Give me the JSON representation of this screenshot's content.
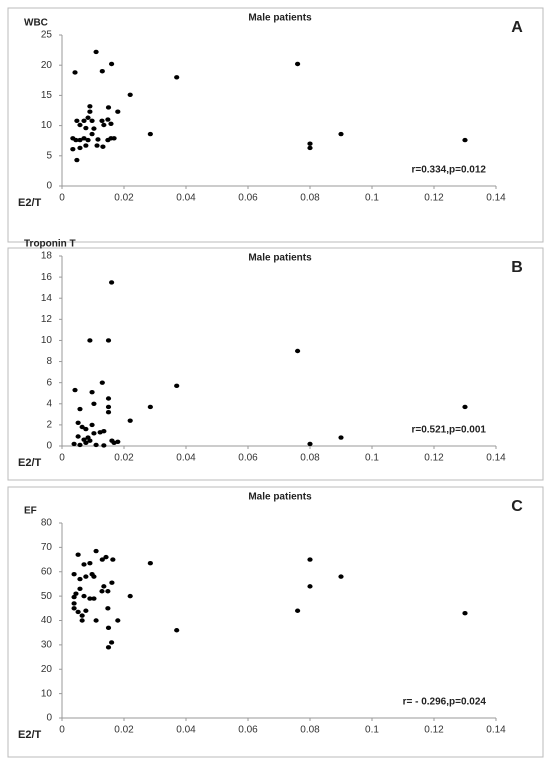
{
  "chart_data": [
    {
      "type": "scatter",
      "title": "Male patients",
      "y_label": "WBC",
      "x_label": "E2/T",
      "panel": "A",
      "annotation": "r=0.334,p=0.012",
      "color": "#000000",
      "x": [
        0.0042,
        0.011,
        0.013,
        0.016,
        0.022,
        0.037,
        0.076,
        0.08,
        0.08,
        0.09,
        0.13,
        0.0285,
        0.018,
        0.015,
        0.009,
        0.009,
        0.0048,
        0.0058,
        0.0071,
        0.0077,
        0.0084,
        0.0097,
        0.0103,
        0.0129,
        0.0135,
        0.0148,
        0.0158,
        0.0045,
        0.0058,
        0.0071,
        0.0084,
        0.0097,
        0.0116,
        0.0077,
        0.0058,
        0.0035,
        0.0048,
        0.0113,
        0.0132,
        0.0148,
        0.0158,
        0.0168,
        0.0035
      ],
      "y": [
        18.8,
        22.2,
        19,
        20.2,
        15.1,
        18,
        20.2,
        7,
        6.3,
        8.6,
        7.6,
        8.6,
        12.3,
        13,
        13.2,
        12.3,
        10.8,
        10.1,
        10.8,
        9.6,
        11.3,
        10.8,
        9.5,
        10.8,
        10.1,
        11,
        10.3,
        7.6,
        7.6,
        7.9,
        7.6,
        8.6,
        7.7,
        6.7,
        6.3,
        6.1,
        4.3,
        6.7,
        6.5,
        7.6,
        7.9,
        7.9,
        7.9
      ],
      "xlim": [
        0,
        0.14
      ],
      "xticks": [
        0,
        0.02,
        0.04,
        0.06,
        0.08,
        0.1,
        0.12,
        0.14
      ],
      "ylim": [
        0,
        25
      ],
      "yticks": [
        0,
        5,
        10,
        15,
        20,
        25
      ]
    },
    {
      "type": "scatter",
      "title": "Male patients",
      "y_label": "Troponin T",
      "x_label": "E2/T",
      "panel": "B",
      "annotation": "r=0.521,p=0.001",
      "color": "#000000",
      "x": [
        0.016,
        0.009,
        0.015,
        0.076,
        0.037,
        0.0042,
        0.0097,
        0.013,
        0.015,
        0.015,
        0.015,
        0.0285,
        0.13,
        0.0058,
        0.0103,
        0.022,
        0.09,
        0.08,
        0.0052,
        0.0065,
        0.0077,
        0.0097,
        0.0103,
        0.0123,
        0.0135,
        0.0084,
        0.0052,
        0.0071,
        0.0039,
        0.0058,
        0.0077,
        0.009,
        0.011,
        0.0135,
        0.0161,
        0.018,
        0.0168
      ],
      "y": [
        15.5,
        10,
        10,
        9,
        5.7,
        5.3,
        5.1,
        6,
        4.5,
        3.7,
        3.2,
        3.7,
        3.7,
        3.5,
        4,
        2.4,
        0.8,
        0.2,
        2.2,
        1.8,
        1.6,
        2,
        1.2,
        1.3,
        1.4,
        0.8,
        0.9,
        0.6,
        0.2,
        0.1,
        0.3,
        0.5,
        0.1,
        0.05,
        0.5,
        0.4,
        0.3
      ],
      "xlim": [
        0,
        0.14
      ],
      "xticks": [
        0,
        0.02,
        0.04,
        0.06,
        0.08,
        0.1,
        0.12,
        0.14
      ],
      "ylim": [
        0,
        18
      ],
      "yticks": [
        0,
        2,
        4,
        6,
        8,
        10,
        12,
        14,
        16,
        18
      ]
    },
    {
      "type": "scatter",
      "title": "Male patients",
      "y_label": "EF",
      "x_label": "E2/T",
      "panel": "C",
      "annotation": "r= - 0.296,p=0.024",
      "color": "#000000",
      "x": [
        0.0052,
        0.011,
        0.013,
        0.0142,
        0.0164,
        0.009,
        0.0071,
        0.0285,
        0.08,
        0.08,
        0.09,
        0.076,
        0.13,
        0.037,
        0.022,
        0.018,
        0.016,
        0.015,
        0.015,
        0.0039,
        0.0058,
        0.0077,
        0.0097,
        0.0103,
        0.0045,
        0.0058,
        0.0071,
        0.0039,
        0.0039,
        0.0052,
        0.0065,
        0.0077,
        0.009,
        0.0103,
        0.0129,
        0.0135,
        0.0148,
        0.0161,
        0.0148,
        0.011,
        0.0065,
        0.0039
      ],
      "y": [
        67,
        68.5,
        65,
        66,
        65,
        63.5,
        63,
        63.5,
        65,
        54,
        58,
        44,
        43,
        36,
        50,
        40,
        31,
        29,
        37,
        59,
        57,
        58,
        59,
        58,
        51,
        53,
        50,
        47,
        45,
        43.5,
        42,
        44,
        49,
        49,
        52,
        54,
        52,
        55.5,
        45,
        40,
        40,
        49.6
      ],
      "xlim": [
        0,
        0.14
      ],
      "xticks": [
        0,
        0.02,
        0.04,
        0.06,
        0.08,
        0.1,
        0.12,
        0.14
      ],
      "ylim": [
        0,
        80
      ],
      "yticks": [
        0,
        10,
        20,
        30,
        40,
        50,
        60,
        70,
        80
      ]
    }
  ]
}
